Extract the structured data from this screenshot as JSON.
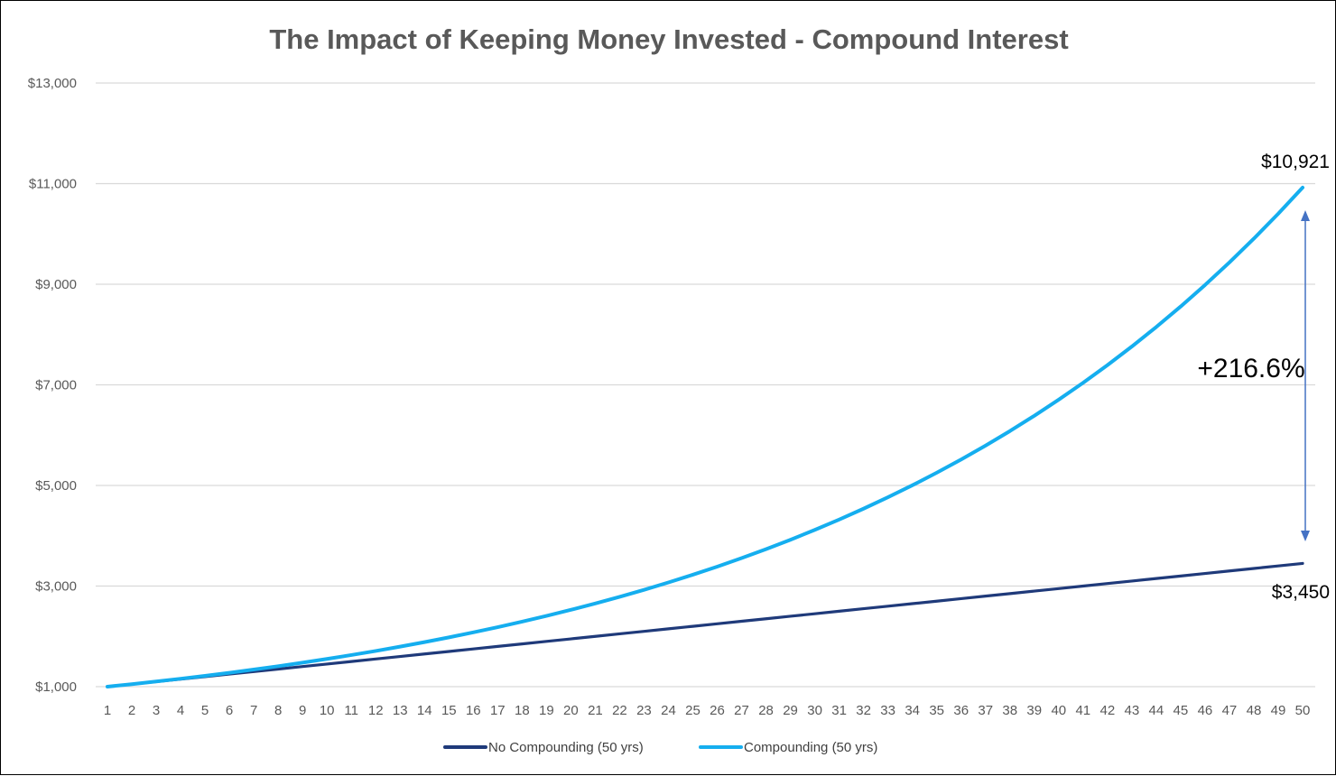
{
  "chart_data": {
    "type": "line",
    "title": "The Impact of Keeping Money Invested - Compound Interest",
    "xlabel": "",
    "ylabel": "",
    "x": [
      1,
      2,
      3,
      4,
      5,
      6,
      7,
      8,
      9,
      10,
      11,
      12,
      13,
      14,
      15,
      16,
      17,
      18,
      19,
      20,
      21,
      22,
      23,
      24,
      25,
      26,
      27,
      28,
      29,
      30,
      31,
      32,
      33,
      34,
      35,
      36,
      37,
      38,
      39,
      40,
      41,
      42,
      43,
      44,
      45,
      46,
      47,
      48,
      49,
      50
    ],
    "ylim": [
      1000,
      13000
    ],
    "yticks": [
      1000,
      3000,
      5000,
      7000,
      9000,
      11000,
      13000
    ],
    "ytick_labels": [
      "$1,000",
      "$3,000",
      "$5,000",
      "$7,000",
      "$9,000",
      "$11,000",
      "$13,000"
    ],
    "grid": "horizontal",
    "legend": "bottom",
    "series": [
      {
        "name": "No Compounding (50 yrs)",
        "color": "#1F3A7A",
        "values": [
          1000,
          1050,
          1100,
          1150,
          1200,
          1250,
          1300,
          1350,
          1400,
          1450,
          1500,
          1550,
          1600,
          1650,
          1700,
          1750,
          1800,
          1850,
          1900,
          1950,
          2000,
          2050,
          2100,
          2150,
          2200,
          2250,
          2300,
          2350,
          2400,
          2450,
          2500,
          2550,
          2600,
          2650,
          2700,
          2750,
          2800,
          2850,
          2900,
          2950,
          3000,
          3050,
          3100,
          3150,
          3200,
          3250,
          3300,
          3350,
          3400,
          3450
        ]
      },
      {
        "name": "Compounding (50 yrs)",
        "color": "#15AEEF",
        "values": [
          1000,
          1050,
          1103,
          1158,
          1216,
          1276,
          1340,
          1407,
          1477,
          1551,
          1629,
          1710,
          1796,
          1886,
          1980,
          2079,
          2183,
          2292,
          2407,
          2527,
          2653,
          2786,
          2925,
          3072,
          3225,
          3386,
          3556,
          3733,
          3920,
          4116,
          4322,
          4538,
          4765,
          5003,
          5253,
          5516,
          5792,
          6081,
          6385,
          6705,
          7040,
          7392,
          7762,
          8150,
          8557,
          8985,
          9434,
          9906,
          10401,
          10921
        ]
      }
    ],
    "annotations": {
      "end_compound": "$10,921",
      "end_simple": "$3,450",
      "difference": "+216.6%"
    },
    "arrow_color": "#4472C4"
  }
}
